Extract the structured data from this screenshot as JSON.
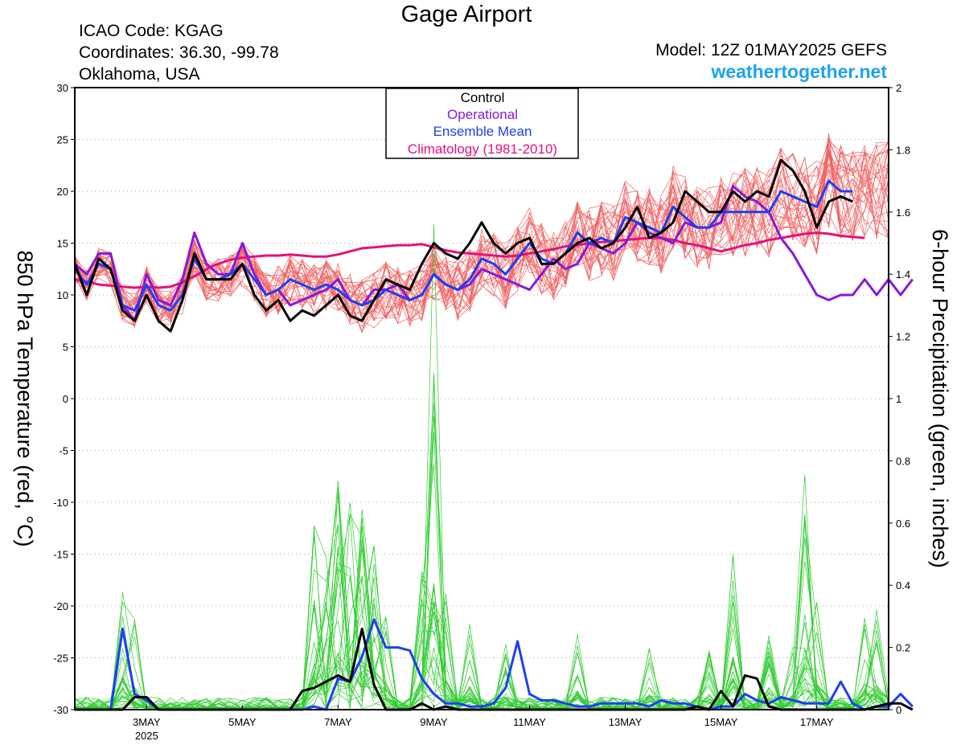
{
  "header": {
    "title": "Gage Airport",
    "icao": "ICAO Code: KGAG",
    "coords": "Coordinates: 36.30, -99.78",
    "location": "Oklahoma, USA",
    "model": "Model: 12Z 01MAY2025 GEFS",
    "site": "weathertogether.net"
  },
  "chart_data": {
    "type": "line",
    "ylabel_left": "850 hPa Temperature (red, °C)",
    "ylabel_right": "6-hour Precipitation (green, inches)",
    "ylim_left": [
      -30,
      30
    ],
    "ylim_right": [
      0,
      2
    ],
    "yticks_left": [
      "30",
      "25",
      "20",
      "15",
      "10",
      "5",
      "0",
      "-5",
      "-10",
      "-15",
      "-20",
      "-25",
      "-30"
    ],
    "yticks_right": [
      "2",
      "1.8",
      "1.6",
      "1.4",
      "1.2",
      "1",
      "0.8",
      "0.6",
      "0.4",
      "0.2",
      "0"
    ],
    "x_start": "2025-05-01T12Z",
    "x_step_hours": 6,
    "x_ticks": [
      {
        "label": "3MAY",
        "sublabel": "2025",
        "index": 6
      },
      {
        "label": "5MAY",
        "sublabel": "",
        "index": 14
      },
      {
        "label": "7MAY",
        "sublabel": "",
        "index": 22
      },
      {
        "label": "9MAY",
        "sublabel": "",
        "index": 30
      },
      {
        "label": "11MAY",
        "sublabel": "",
        "index": 38
      },
      {
        "label": "13MAY",
        "sublabel": "",
        "index": 46
      },
      {
        "label": "15MAY",
        "sublabel": "",
        "index": 54
      },
      {
        "label": "17MAY",
        "sublabel": "",
        "index": 62
      }
    ],
    "grid": "horizontal dotted",
    "legend": {
      "placement": "top-center",
      "entries": [
        {
          "label": "Control",
          "color": "#000000"
        },
        {
          "label": "Operational",
          "color": "#8a18d8"
        },
        {
          "label": "Ensemble Mean",
          "color": "#1f3ff0"
        },
        {
          "label": "Climatology (1981-2010)",
          "color": "#e8107a"
        }
      ]
    },
    "colors": {
      "members_temp": "#f06060",
      "members_precip": "#33cc33",
      "control": "#000000",
      "operational": "#8a18d8",
      "ensemble_mean": "#1f3ff0",
      "climatology": "#e8107a"
    },
    "temperature": {
      "control": [
        13.0,
        10.0,
        13.5,
        12.5,
        8.5,
        7.5,
        10.0,
        7.5,
        6.5,
        9.5,
        14.0,
        11.5,
        11.5,
        11.5,
        13.0,
        10.0,
        8.5,
        9.5,
        7.5,
        8.5,
        8.0,
        9.0,
        10.0,
        8.0,
        7.5,
        9.5,
        11.5,
        11.0,
        10.5,
        13.0,
        15.0,
        14.0,
        13.5,
        15.0,
        17.0,
        15.0,
        14.0,
        15.0,
        15.5,
        13.0,
        13.0,
        14.0,
        15.0,
        15.5,
        14.5,
        15.0,
        16.5,
        18.5,
        15.5,
        16.0,
        17.0,
        20.0,
        19.0,
        18.0,
        18.0,
        20.0,
        19.0,
        20.0,
        19.5,
        23.0,
        22.0,
        20.0,
        16.5,
        19.0,
        19.5,
        19.0
      ],
      "operational": [
        13.0,
        12.0,
        14.0,
        14.0,
        9.0,
        7.5,
        12.0,
        9.5,
        9.0,
        11.5,
        16.0,
        13.0,
        12.0,
        12.0,
        15.0,
        12.0,
        10.0,
        10.5,
        9.0,
        9.5,
        10.0,
        10.5,
        11.5,
        9.5,
        9.0,
        10.5,
        10.5,
        11.0,
        9.5,
        10.0,
        12.0,
        11.0,
        10.5,
        11.0,
        12.5,
        12.0,
        11.5,
        11.0,
        10.5,
        12.0,
        13.5,
        12.5,
        13.0,
        15.0,
        14.5,
        14.0,
        15.0,
        17.0,
        16.0,
        15.5,
        15.0,
        17.0,
        16.5,
        16.5,
        17.0,
        20.5,
        19.5,
        19.0,
        18.0,
        15.5,
        14.0,
        12.0,
        10.0,
        9.5,
        10.0,
        10.0,
        11.5,
        10.0,
        11.5,
        10.0,
        11.5
      ],
      "ensemble_mean": [
        12.5,
        11.0,
        13.0,
        12.5,
        9.0,
        8.5,
        11.0,
        9.0,
        8.5,
        10.0,
        13.5,
        11.5,
        11.5,
        12.0,
        13.0,
        11.5,
        10.0,
        10.5,
        11.5,
        11.0,
        10.5,
        11.0,
        10.5,
        9.5,
        9.0,
        9.5,
        10.5,
        10.0,
        9.5,
        10.0,
        12.0,
        11.0,
        10.5,
        11.5,
        13.5,
        13.0,
        12.0,
        13.5,
        15.0,
        13.5,
        13.0,
        14.0,
        16.0,
        15.0,
        15.5,
        15.0,
        17.5,
        17.0,
        16.5,
        16.0,
        18.5,
        17.5,
        16.5,
        16.5,
        18.0,
        18.0,
        18.0,
        18.0,
        18.0,
        20.0,
        19.5,
        19.0,
        18.5,
        21.0,
        20.0,
        20.0
      ],
      "climatology": [
        11.5,
        11.3,
        11.0,
        10.9,
        10.8,
        10.7,
        10.8,
        10.7,
        10.8,
        11.2,
        11.8,
        12.5,
        13.0,
        13.4,
        13.6,
        13.7,
        13.8,
        13.8,
        13.9,
        13.8,
        13.7,
        13.7,
        13.9,
        14.2,
        14.5,
        14.6,
        14.7,
        14.8,
        14.8,
        14.9,
        14.6,
        14.3,
        14.1,
        14.0,
        13.9,
        13.8,
        13.7,
        13.8,
        14.0,
        14.2,
        14.4,
        14.7,
        14.8,
        15.0,
        15.1,
        15.2,
        15.3,
        15.4,
        15.5,
        15.5,
        15.3,
        15.0,
        14.8,
        14.5,
        14.2,
        14.5,
        14.8,
        15.0,
        15.3,
        15.5,
        15.7,
        15.9,
        16.0,
        15.9,
        15.7,
        15.6,
        15.5
      ]
    },
    "precipitation": {
      "control": [
        0,
        0,
        0,
        0,
        0,
        0.04,
        0.04,
        0,
        0,
        0,
        0,
        0,
        0,
        0,
        0,
        0,
        0,
        0,
        0,
        0.06,
        0.07,
        0.09,
        0.11,
        0.09,
        0.26,
        0.08,
        0,
        0,
        0,
        0.02,
        0,
        0.01,
        0,
        0,
        0,
        0,
        0,
        0,
        0,
        0,
        0,
        0,
        0,
        0,
        0,
        0,
        0,
        0,
        0,
        0,
        0,
        0,
        0.01,
        0,
        0.06,
        0.01,
        0.11,
        0.1,
        0.01,
        0,
        0,
        0,
        0,
        0,
        0,
        0,
        0,
        0.01,
        0.02,
        0.02,
        0
      ],
      "ensemble_mean": [
        0,
        0,
        0,
        0,
        0.26,
        0.05,
        0.03,
        0,
        0,
        0,
        0,
        0,
        0,
        0,
        0,
        0,
        0,
        0,
        0,
        0,
        0.01,
        0,
        0.1,
        0.09,
        0.17,
        0.29,
        0.2,
        0.2,
        0.19,
        0.1,
        0.05,
        0.02,
        0.02,
        0.01,
        0.01,
        0.02,
        0.07,
        0.22,
        0.05,
        0.03,
        0.03,
        0.02,
        0.01,
        0.01,
        0.02,
        0.02,
        0.02,
        0.02,
        0.01,
        0.03,
        0.02,
        0.02,
        0.01,
        0,
        0.01,
        0.01,
        0.05,
        0.03,
        0.02,
        0.04,
        0.03,
        0.02,
        0.02,
        0.02,
        0.09,
        0.02,
        0,
        0.01,
        0.01,
        0.05,
        0.01
      ]
    }
  }
}
